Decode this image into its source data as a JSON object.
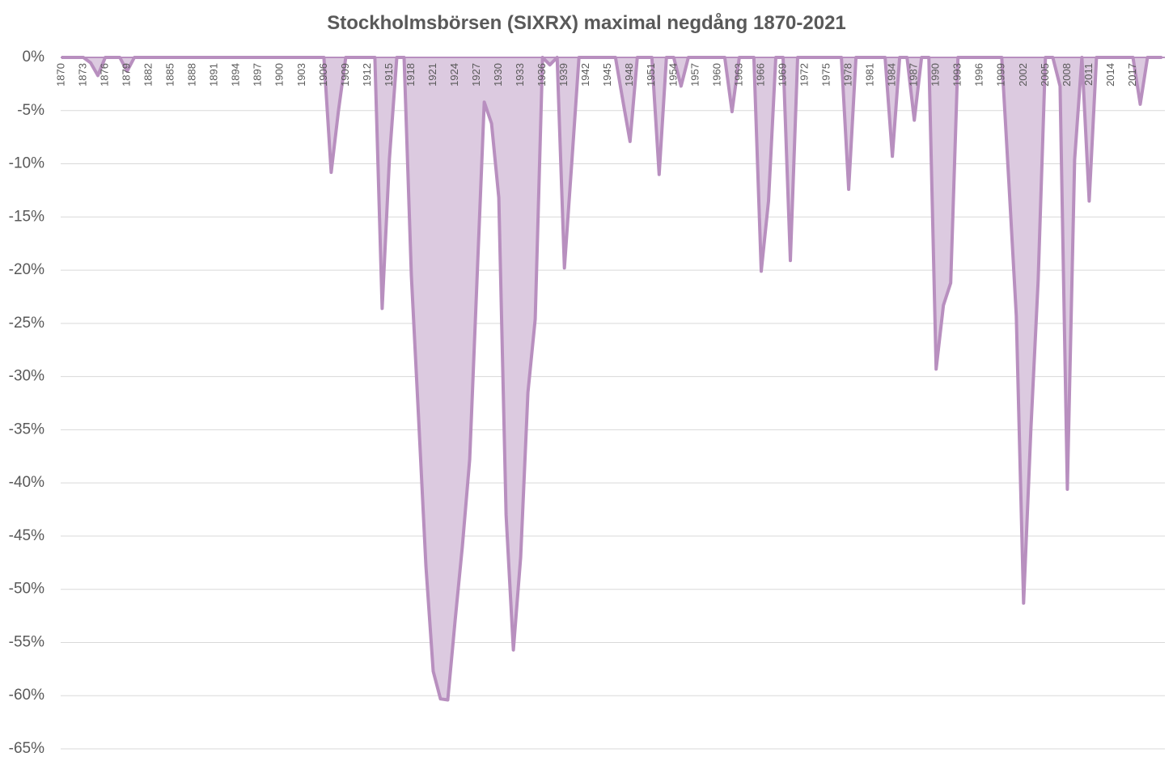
{
  "chart_data": {
    "type": "area",
    "title": "Stockholmsbörsen (SIXRX) maximal negdång 1870-2021",
    "categories": [
      "1870",
      null,
      null,
      "1873",
      null,
      null,
      "1876",
      null,
      null,
      "1879",
      null,
      null,
      "1882",
      null,
      null,
      "1885",
      null,
      null,
      "1888",
      null,
      null,
      "1891",
      null,
      null,
      "1894",
      null,
      null,
      "1897",
      null,
      null,
      "1900",
      null,
      null,
      "1903",
      null,
      null,
      "1906",
      null,
      null,
      "1909",
      null,
      null,
      "1912",
      null,
      null,
      "1915",
      null,
      null,
      "1918",
      null,
      null,
      "1921",
      null,
      null,
      "1924",
      null,
      null,
      "1927",
      null,
      null,
      "1930",
      null,
      null,
      "1933",
      null,
      null,
      "1936",
      null,
      null,
      "1939",
      null,
      null,
      "1942",
      null,
      null,
      "1945",
      null,
      null,
      "1948",
      null,
      null,
      "1951",
      null,
      null,
      "1954",
      null,
      null,
      "1957",
      null,
      null,
      "1960",
      null,
      null,
      "1963",
      null,
      null,
      "1966",
      null,
      null,
      "1969",
      null,
      null,
      "1972",
      null,
      null,
      "1975",
      null,
      null,
      "1978",
      null,
      null,
      "1981",
      null,
      null,
      "1984",
      null,
      null,
      "1987",
      null,
      null,
      "1990",
      null,
      null,
      "1993",
      null,
      null,
      "1996",
      null,
      null,
      "1999",
      null,
      null,
      "2002",
      null,
      null,
      "2005",
      null,
      null,
      "2008",
      null,
      null,
      "2011",
      null,
      null,
      "2014",
      null,
      null,
      "2017",
      null,
      null,
      null,
      null
    ],
    "values": [
      0,
      0,
      0,
      0,
      -0.5,
      -1.7,
      0,
      0,
      0,
      -1.3,
      0,
      0,
      0,
      0,
      0,
      0,
      0,
      0,
      0,
      0,
      0,
      0,
      0,
      0,
      0,
      0,
      0,
      0,
      0,
      0,
      0,
      0,
      0,
      0,
      0,
      0,
      0,
      -10.8,
      -5,
      0,
      0,
      0,
      0,
      0,
      -23.6,
      -9.5,
      0,
      0,
      -20.5,
      -34,
      -47.8,
      -57.7,
      -60.3,
      -60.4,
      -53,
      -46,
      -37.8,
      -21,
      -4.2,
      -6.2,
      -13.2,
      -43,
      -55.7,
      -47,
      -31.5,
      -24.6,
      0,
      -0.7,
      0,
      -19.8,
      -10,
      0,
      0,
      0,
      0,
      0,
      0,
      -4,
      -7.9,
      0,
      0,
      0,
      -11,
      0,
      0,
      -2.7,
      0,
      0,
      0,
      0,
      0,
      0,
      -5.1,
      0,
      0,
      0,
      -20.1,
      -13.5,
      0,
      0,
      -19.1,
      0,
      0,
      0,
      0,
      0,
      0,
      0,
      -12.4,
      0,
      0,
      0,
      0,
      0,
      -9.3,
      0,
      0,
      -5.9,
      0,
      0,
      -29.3,
      -23.3,
      -21.2,
      0,
      0,
      0,
      0,
      0,
      0,
      0,
      -12,
      -24.3,
      -51.3,
      -35,
      -21,
      0,
      0,
      -2.7,
      -40.6,
      -9.6,
      0,
      -13.5,
      0,
      0,
      0,
      0,
      0,
      0,
      -4.4,
      0,
      0,
      0
    ],
    "color": "#b88fbf",
    "fill": "#dccae0",
    "ylim": [
      -65,
      0
    ],
    "yticks": [
      {
        "value": 0,
        "label": "0%"
      },
      {
        "value": -5,
        "label": "-5%"
      },
      {
        "value": -10,
        "label": "-10%"
      },
      {
        "value": -15,
        "label": "-15%"
      },
      {
        "value": -20,
        "label": "-20%"
      },
      {
        "value": -25,
        "label": "-25%"
      },
      {
        "value": -30,
        "label": "-30%"
      },
      {
        "value": -35,
        "label": "-35%"
      },
      {
        "value": -40,
        "label": "-40%"
      },
      {
        "value": -45,
        "label": "-45%"
      },
      {
        "value": -50,
        "label": "-50%"
      },
      {
        "value": -55,
        "label": "-55%"
      },
      {
        "value": -60,
        "label": "-60%"
      },
      {
        "value": -65,
        "label": "-65%"
      }
    ],
    "grid": true
  }
}
